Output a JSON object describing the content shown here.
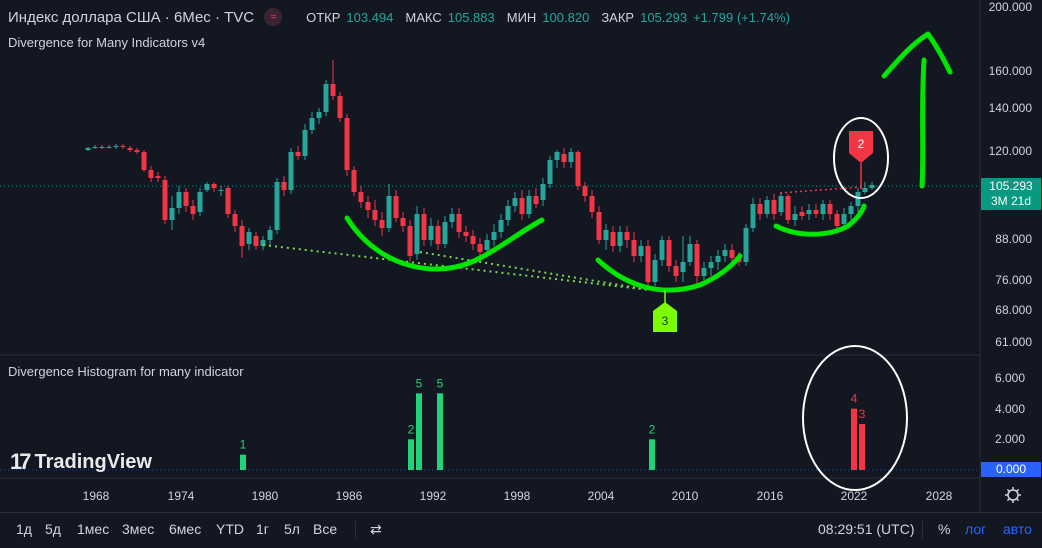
{
  "header": {
    "symbol": "Индекс доллара США · 6Мес · TVC",
    "open_label": "ОТКР",
    "open_value": "103.494",
    "high_label": "МАКС",
    "high_value": "105.883",
    "low_label": "МИН",
    "low_value": "100.820",
    "close_label": "ЗАКР",
    "close_value": "105.293",
    "change": "+1.799 (+1.74%)"
  },
  "indicator_top": "Divergence for Many Indicators v4",
  "indicator_bottom": "Divergence Histogram for many indicator",
  "brand": "TradingView",
  "price_axis": [
    "200.000",
    "160.000",
    "140.000",
    "120.000",
    "88.000",
    "76.000",
    "68.000",
    "61.000"
  ],
  "current_price": "105.293",
  "countdown": "3M 21d",
  "hist_axis": [
    "6.000",
    "4.000",
    "2.000"
  ],
  "hist_zero": "0.000",
  "time_axis": [
    "1968",
    "1974",
    "1980",
    "1986",
    "1992",
    "1998",
    "2004",
    "2010",
    "2016",
    "2022",
    "2028"
  ],
  "markers": {
    "top_label": "2",
    "bottom_label": "3"
  },
  "histogram": {
    "bullish": [
      {
        "label": "1",
        "value": 1
      },
      {
        "label": "2",
        "value": 2
      },
      {
        "label": "5",
        "value": 5
      },
      {
        "label": "5",
        "value": 5
      },
      {
        "label": "2",
        "value": 2
      }
    ],
    "bearish": [
      {
        "label": "4",
        "value": 4
      },
      {
        "label": "3",
        "value": 3
      }
    ]
  },
  "toolbar": {
    "ranges": [
      "1д",
      "5д",
      "1мес",
      "3мес",
      "6мес",
      "YTD",
      "1г",
      "5л",
      "Все"
    ],
    "time": "08:29:51 (UTC)",
    "percent": "%",
    "log": "лог",
    "auto": "авто"
  },
  "colors": {
    "up": "#26a69a",
    "down": "#f23645",
    "bg": "#131722",
    "annotation": "#00e600",
    "accent": "#2962ff"
  }
}
